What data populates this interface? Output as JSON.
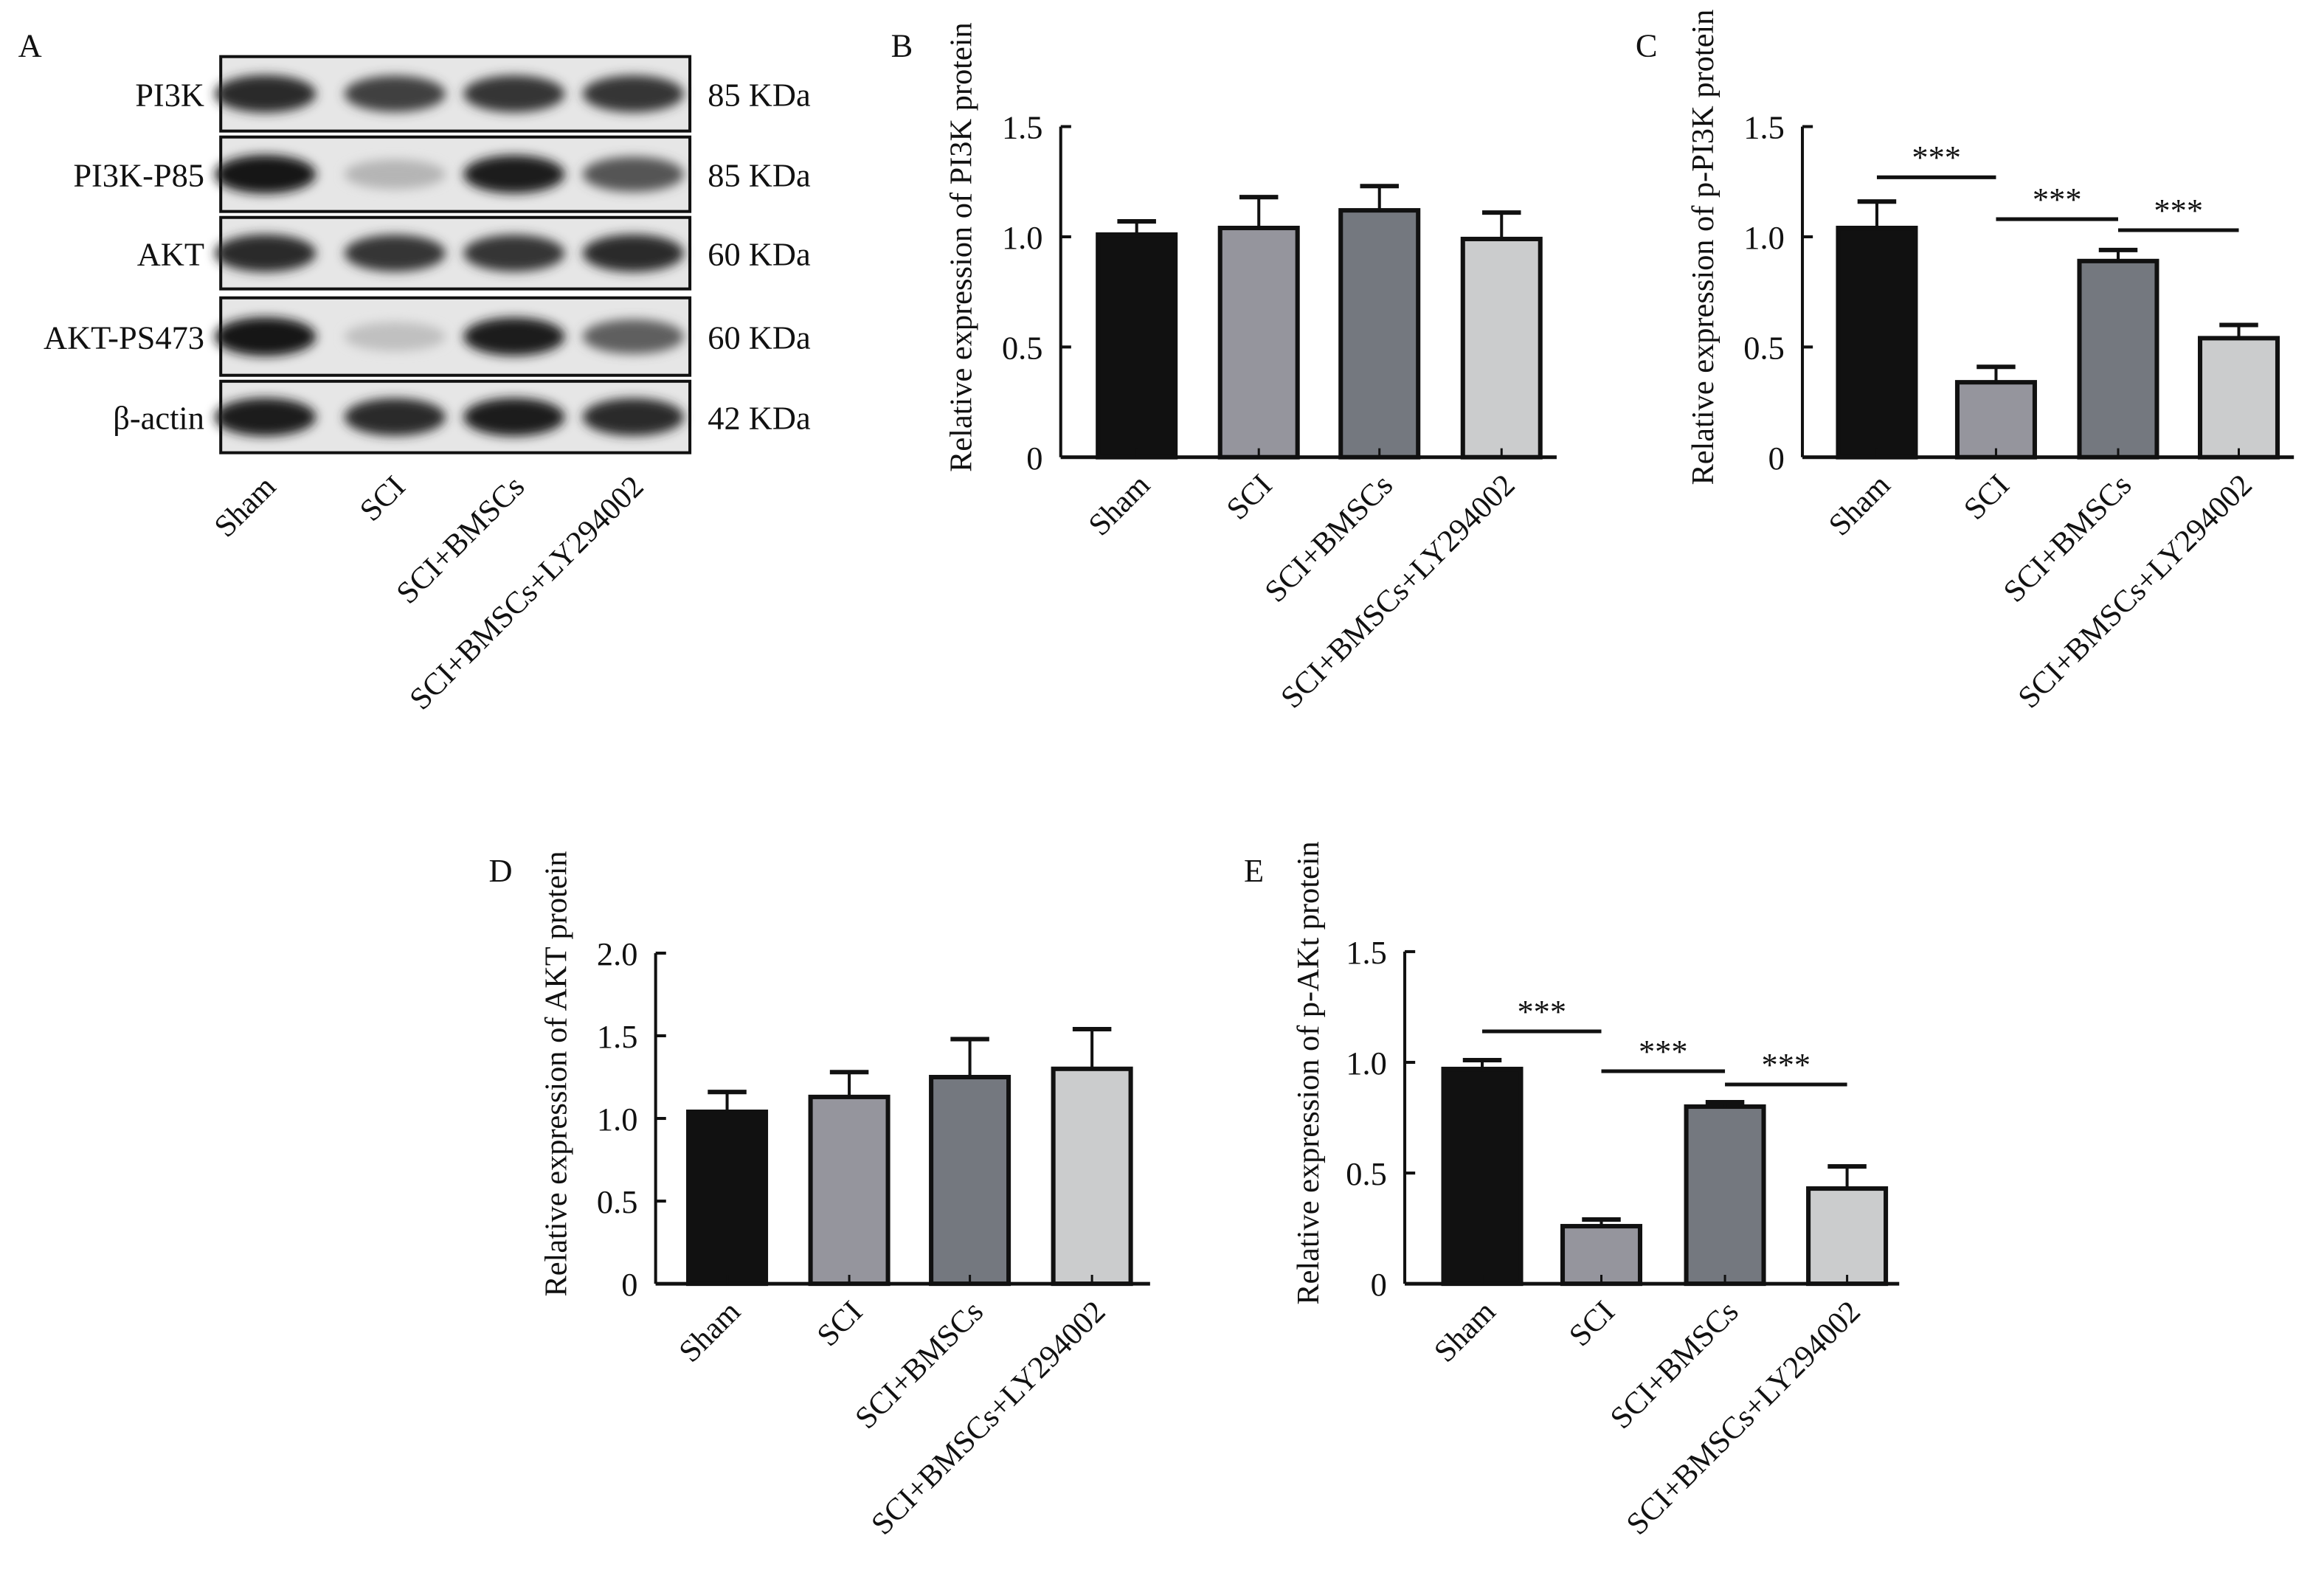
{
  "colors": {
    "Sham": "#111111",
    "SCI": "#95959d",
    "SCI+BMSCs": "#74787f",
    "SCI+BMSCs+LY294002": "#cbcccd"
  },
  "blot": {
    "panel_label": "A",
    "lanes": [
      "Sham",
      "SCI",
      "SCI+BMSCs",
      "SCI+BMSCs+LY294002"
    ],
    "rows": [
      {
        "name": "PI3K",
        "size": "85 KDa",
        "intensity": [
          0.9,
          0.8,
          0.85,
          0.85
        ]
      },
      {
        "name": "PI3K-P85",
        "size": "85 KDa",
        "intensity": [
          1.0,
          0.25,
          0.95,
          0.7
        ]
      },
      {
        "name": "AKT",
        "size": "60 KDa",
        "intensity": [
          0.9,
          0.85,
          0.85,
          0.9
        ]
      },
      {
        "name": "AKT-PS473",
        "size": "60 KDa",
        "intensity": [
          1.0,
          0.2,
          0.95,
          0.65
        ]
      },
      {
        "name": "β-actin",
        "size": "42 KDa",
        "intensity": [
          0.95,
          0.9,
          0.95,
          0.9
        ]
      }
    ]
  },
  "chart_data": [
    {
      "panel": "B",
      "type": "bar",
      "title": "",
      "xlabel": "",
      "ylabel": "Relative expression of PI3K protein",
      "categories": [
        "Sham",
        "SCI",
        "SCI+BMSCs",
        "SCI+BMSCs+LY294002"
      ],
      "values": [
        1.01,
        1.04,
        1.12,
        0.99
      ],
      "errors": [
        0.06,
        0.14,
        0.11,
        0.12
      ],
      "ylim": [
        0,
        1.5
      ],
      "yticks": [
        "0",
        "0.5",
        "1.0",
        "1.5"
      ],
      "ytick_values": [
        0,
        0.5,
        1.0,
        1.5
      ],
      "significance": []
    },
    {
      "panel": "C",
      "type": "bar",
      "title": "",
      "xlabel": "",
      "ylabel": "Relative expression of p-PI3K protein",
      "categories": [
        "Sham",
        "SCI",
        "SCI+BMSCs",
        "SCI+BMSCs+LY294002"
      ],
      "values": [
        1.04,
        0.34,
        0.89,
        0.54
      ],
      "errors": [
        0.12,
        0.07,
        0.05,
        0.06
      ],
      "ylim": [
        0,
        1.5
      ],
      "yticks": [
        "0",
        "0.5",
        "1.0",
        "1.5"
      ],
      "ytick_values": [
        0,
        0.5,
        1.0,
        1.5
      ],
      "significance": [
        {
          "from": 0,
          "to": 1,
          "label": "***",
          "y": 1.27
        },
        {
          "from": 1,
          "to": 2,
          "label": "***",
          "y": 1.08
        },
        {
          "from": 2,
          "to": 3,
          "label": "***",
          "y": 1.03
        }
      ]
    },
    {
      "panel": "D",
      "type": "bar",
      "title": "",
      "xlabel": "",
      "ylabel": "Relative expression of AKT protein",
      "categories": [
        "Sham",
        "SCI",
        "SCI+BMSCs",
        "SCI+BMSCs+LY294002"
      ],
      "values": [
        1.04,
        1.13,
        1.25,
        1.3
      ],
      "errors": [
        0.12,
        0.15,
        0.23,
        0.24
      ],
      "ylim": [
        0,
        2.0
      ],
      "yticks": [
        "0",
        "0.5",
        "1.0",
        "1.5",
        "2.0"
      ],
      "ytick_values": [
        0,
        0.5,
        1.0,
        1.5,
        2.0
      ],
      "significance": []
    },
    {
      "panel": "E",
      "type": "bar",
      "title": "",
      "xlabel": "",
      "ylabel": "Relative expression of p-AKt protein",
      "categories": [
        "Sham",
        "SCI",
        "SCI+BMSCs",
        "SCI+BMSCs+LY294002"
      ],
      "values": [
        0.97,
        0.26,
        0.8,
        0.43
      ],
      "errors": [
        0.04,
        0.03,
        0.02,
        0.1
      ],
      "ylim": [
        0,
        1.5
      ],
      "yticks": [
        "0",
        "0.5",
        "1.0",
        "1.5"
      ],
      "ytick_values": [
        0,
        0.5,
        1.0,
        1.5
      ],
      "significance": [
        {
          "from": 0,
          "to": 1,
          "label": "***",
          "y": 1.14
        },
        {
          "from": 1,
          "to": 2,
          "label": "***",
          "y": 0.96
        },
        {
          "from": 2,
          "to": 3,
          "label": "***",
          "y": 0.9
        }
      ]
    }
  ]
}
